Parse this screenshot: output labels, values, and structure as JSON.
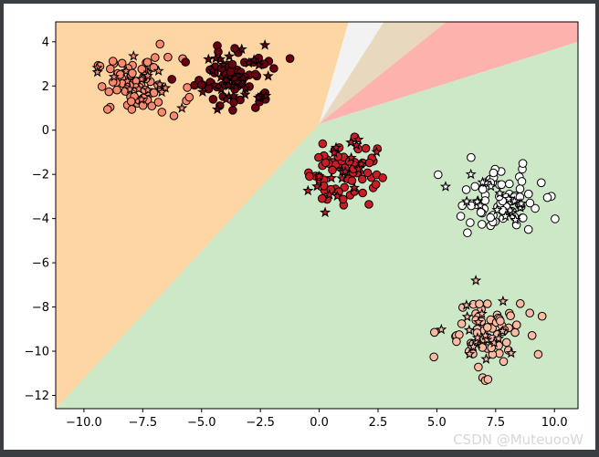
{
  "watermark": "CSDN @MuteuooW",
  "chart_data": {
    "type": "scatter",
    "title": "",
    "xlabel": "",
    "ylabel": "",
    "xlim": [
      -11.2,
      11.0
    ],
    "ylim": [
      -12.6,
      4.9
    ],
    "xticks": [
      -10.0,
      -7.5,
      -5.0,
      -2.5,
      0.0,
      2.5,
      5.0,
      7.5,
      10.0
    ],
    "xtick_labels": [
      "−10.0",
      "−7.5",
      "−5.0",
      "−2.5",
      "0.0",
      "2.5",
      "5.0",
      "7.5",
      "10.0"
    ],
    "yticks": [
      4,
      2,
      0,
      -2,
      -4,
      -6,
      -8,
      -10,
      -12
    ],
    "ytick_labels": [
      "4",
      "2",
      "0",
      "−2",
      "−4",
      "−6",
      "−8",
      "−10",
      "−12"
    ],
    "grid": false,
    "legend": "none",
    "decision_regions": {
      "origin": [
        0.0,
        0.3
      ],
      "colors": [
        "#cce8c7",
        "#fdd6a3",
        "#f2f2f2",
        "#e8d8be",
        "#fdb2ae"
      ],
      "boundary_points": [
        [
          -11.2,
          -12.6
        ],
        [
          1.25,
          4.9
        ],
        [
          2.75,
          4.9
        ],
        [
          5.4,
          4.9
        ],
        [
          11.0,
          4.0
        ],
        [
          11.0,
          4.9
        ]
      ]
    },
    "markers": {
      "train": "circle",
      "test": "star"
    },
    "clusters": [
      {
        "color": "#fb8a6d",
        "center": [
          -7.7,
          2.0
        ],
        "spread": [
          1.1,
          0.75
        ],
        "n_train": 72,
        "n_test": 18
      },
      {
        "color": "#6b0010",
        "center": [
          -3.5,
          2.4
        ],
        "spread": [
          1.0,
          0.85
        ],
        "n_train": 66,
        "n_test": 32
      },
      {
        "color": "#cc1d24",
        "center": [
          1.0,
          -1.8
        ],
        "spread": [
          0.85,
          0.95
        ],
        "n_train": 68,
        "n_test": 20
      },
      {
        "color": "#ffffff",
        "center": [
          7.6,
          -3.2
        ],
        "spread": [
          1.1,
          0.85
        ],
        "n_train": 70,
        "n_test": 20
      },
      {
        "color": "#fcbba1",
        "center": [
          7.0,
          -9.2
        ],
        "spread": [
          1.0,
          0.95
        ],
        "n_train": 68,
        "n_test": 20
      }
    ]
  }
}
